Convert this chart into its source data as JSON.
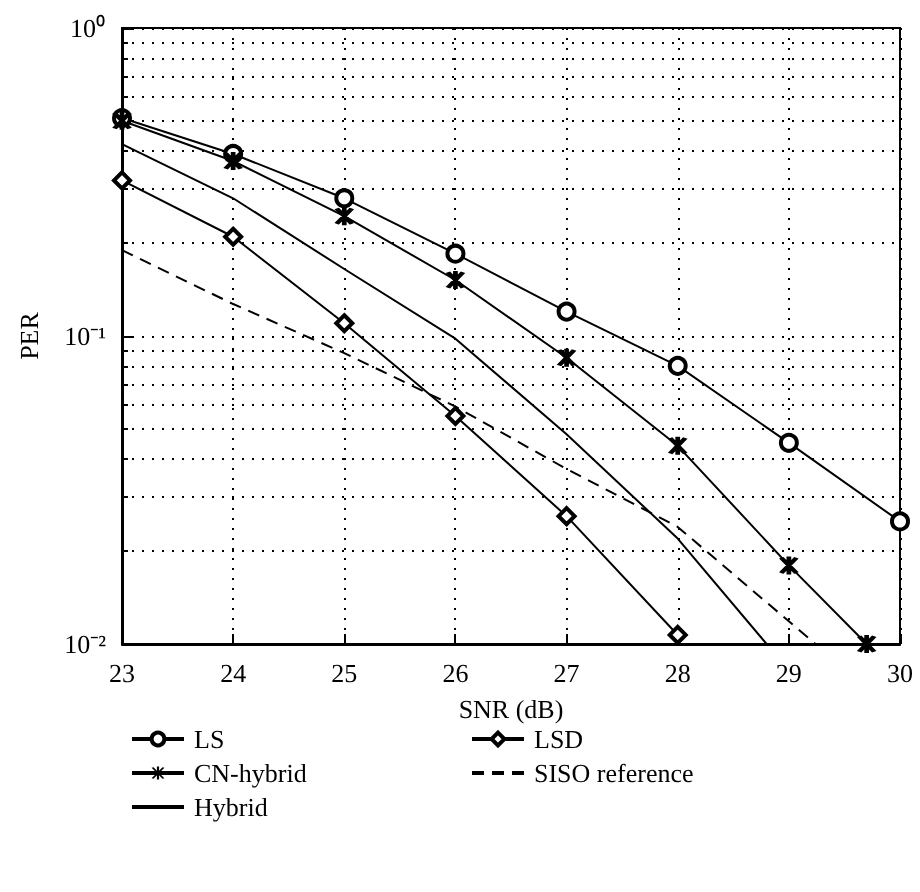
{
  "chart_data": {
    "type": "line",
    "xlabel": "SNR (dB)",
    "ylabel": "PER",
    "log": "y",
    "grid": true,
    "legend": "bottom",
    "xlim": [
      23,
      30
    ],
    "xticks": [
      23,
      24,
      25,
      26,
      27,
      28,
      29,
      30
    ],
    "ylim": [
      0.01,
      1
    ],
    "yticks": [
      {
        "value": 0.01,
        "label": "10⁻²"
      },
      {
        "value": 0.1,
        "label": "10⁻¹"
      },
      {
        "value": 1,
        "label": "10⁰"
      }
    ],
    "series": [
      {
        "name": "LS",
        "color": "#000000",
        "marker": "circle",
        "line_style": "solid",
        "x": [
          23,
          24,
          25,
          26,
          27,
          28,
          29,
          30
        ],
        "values": [
          0.51,
          0.39,
          0.28,
          0.185,
          0.12,
          0.08,
          0.045,
          0.025
        ]
      },
      {
        "name": "CN-hybrid",
        "color": "#000000",
        "marker": "cross",
        "line_style": "solid",
        "x": [
          23,
          24,
          25,
          26,
          27,
          28,
          29,
          29.7
        ],
        "values": [
          0.5,
          0.37,
          0.245,
          0.152,
          0.085,
          0.044,
          0.018,
          0.01
        ]
      },
      {
        "name": "Hybrid",
        "color": "#000000",
        "marker": "none",
        "line_style": "solid",
        "x": [
          23,
          24,
          25,
          26,
          27,
          28,
          28.8
        ],
        "values": [
          0.42,
          0.28,
          0.165,
          0.098,
          0.048,
          0.022,
          0.01
        ]
      },
      {
        "name": "LSD",
        "color": "#000000",
        "marker": "diamond",
        "line_style": "solid",
        "x": [
          23,
          24,
          25,
          26,
          27,
          28
        ],
        "values": [
          0.32,
          0.21,
          0.11,
          0.055,
          0.026,
          0.0107
        ]
      },
      {
        "name": "SISO reference",
        "color": "#000000",
        "marker": "none",
        "line_style": "dashed",
        "x": [
          23,
          24,
          25,
          26,
          27,
          28,
          29.24
        ],
        "values": [
          0.19,
          0.127,
          0.088,
          0.059,
          0.037,
          0.024,
          0.01
        ]
      }
    ]
  }
}
